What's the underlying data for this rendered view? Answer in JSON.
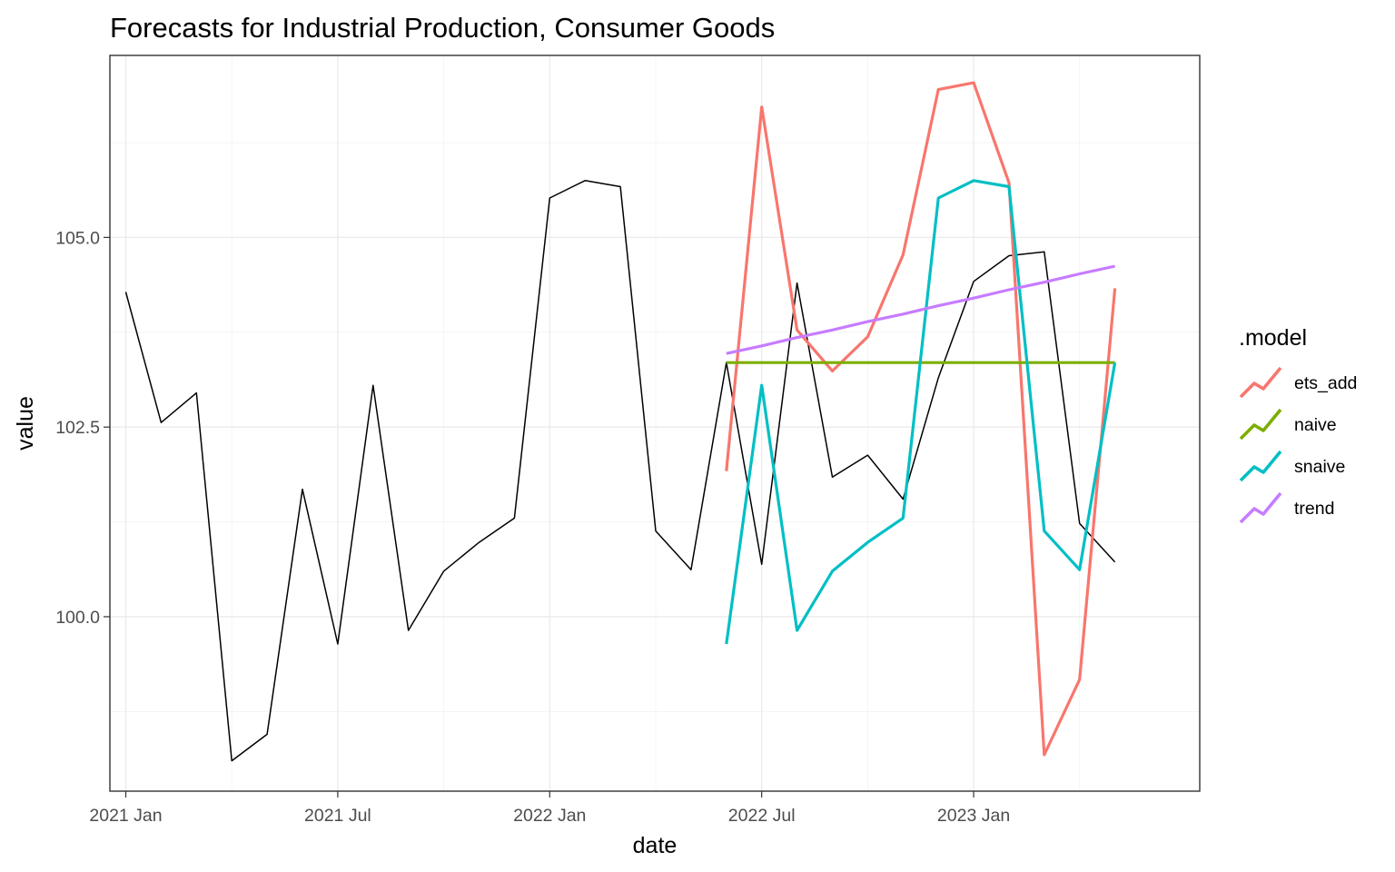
{
  "chart_data": {
    "type": "line",
    "title": "Forecasts for Industrial Production, Consumer Goods",
    "xlabel": "date",
    "ylabel": "value",
    "x_ticks": [
      {
        "label": "2021 Jan",
        "date": "2021-01"
      },
      {
        "label": "2021 Jul",
        "date": "2021-07"
      },
      {
        "label": "2022 Jan",
        "date": "2022-01"
      },
      {
        "label": "2022 Jul",
        "date": "2022-07"
      },
      {
        "label": "2023 Jan",
        "date": "2023-01"
      }
    ],
    "y_ticks": [
      100.0,
      102.5,
      105.0
    ],
    "y_tick_labels": [
      "100.0",
      "102.5",
      "105.0"
    ],
    "xlim": [
      "2020-12",
      "2023-07"
    ],
    "ylim": [
      97.7,
      107.4
    ],
    "grid": true,
    "legend": {
      "title": ".model",
      "position": "right"
    },
    "actual": {
      "color": "#000000",
      "x": [
        "2021-01",
        "2021-02",
        "2021-03",
        "2021-04",
        "2021-05",
        "2021-06",
        "2021-07",
        "2021-08",
        "2021-09",
        "2021-10",
        "2021-11",
        "2021-12",
        "2022-01",
        "2022-02",
        "2022-03",
        "2022-04",
        "2022-05",
        "2022-06",
        "2022-07",
        "2022-08",
        "2022-09",
        "2022-10",
        "2022-11",
        "2022-12",
        "2023-01",
        "2023-02",
        "2023-03",
        "2023-04",
        "2023-05"
      ],
      "y": [
        104.28,
        102.56,
        102.95,
        98.1,
        98.45,
        101.68,
        99.64,
        103.05,
        99.82,
        100.6,
        100.98,
        101.3,
        105.52,
        105.75,
        105.67,
        101.13,
        100.62,
        103.35,
        100.69,
        104.4,
        101.84,
        102.13,
        101.55,
        103.15,
        104.42,
        104.76,
        104.81,
        101.23,
        100.72
      ]
    },
    "series": [
      {
        "name": "ets_add",
        "color": "#f8766d",
        "x": [
          "2022-06",
          "2022-07",
          "2022-08",
          "2022-09",
          "2022-10",
          "2022-11",
          "2022-12",
          "2023-01",
          "2023-02",
          "2023-03",
          "2023-04",
          "2023-05"
        ],
        "y": [
          101.92,
          106.72,
          103.78,
          103.24,
          103.69,
          104.77,
          106.95,
          107.04,
          105.72,
          98.18,
          99.17,
          104.33
        ]
      },
      {
        "name": "naive",
        "color": "#7cae00",
        "x": [
          "2022-06",
          "2022-07",
          "2022-08",
          "2022-09",
          "2022-10",
          "2022-11",
          "2022-12",
          "2023-01",
          "2023-02",
          "2023-03",
          "2023-04",
          "2023-05"
        ],
        "y": [
          103.35,
          103.35,
          103.35,
          103.35,
          103.35,
          103.35,
          103.35,
          103.35,
          103.35,
          103.35,
          103.35,
          103.35
        ]
      },
      {
        "name": "snaive",
        "color": "#00bfc4",
        "x": [
          "2022-06",
          "2022-07",
          "2022-08",
          "2022-09",
          "2022-10",
          "2022-11",
          "2022-12",
          "2023-01",
          "2023-02",
          "2023-03",
          "2023-04",
          "2023-05"
        ],
        "y": [
          99.64,
          103.05,
          99.82,
          100.6,
          100.98,
          101.3,
          105.52,
          105.75,
          105.67,
          101.13,
          100.62,
          103.35
        ]
      },
      {
        "name": "trend",
        "color": "#c77cff",
        "x": [
          "2022-06",
          "2022-07",
          "2022-08",
          "2022-09",
          "2022-10",
          "2022-11",
          "2022-12",
          "2023-01",
          "2023-02",
          "2023-03",
          "2023-04",
          "2023-05"
        ],
        "y": [
          103.47,
          103.57,
          103.68,
          103.78,
          103.89,
          103.99,
          104.1,
          104.2,
          104.31,
          104.41,
          104.52,
          104.62
        ]
      }
    ]
  }
}
